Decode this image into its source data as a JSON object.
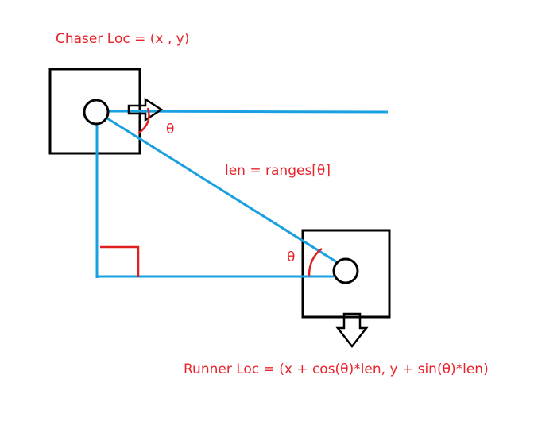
{
  "labels": {
    "chaser_loc": "Chaser Loc = (x , y)",
    "theta_top": "θ",
    "len_eq": "len = ranges[θ]",
    "theta_bottom": "θ",
    "runner_loc": "Runner Loc = (x + cos(θ)*len, y + sin(θ)*len)"
  },
  "colors": {
    "label_red": "#e8232b",
    "line_blue": "#1aa0e0",
    "box_black": "#000000",
    "marker_red": "#e02020"
  }
}
